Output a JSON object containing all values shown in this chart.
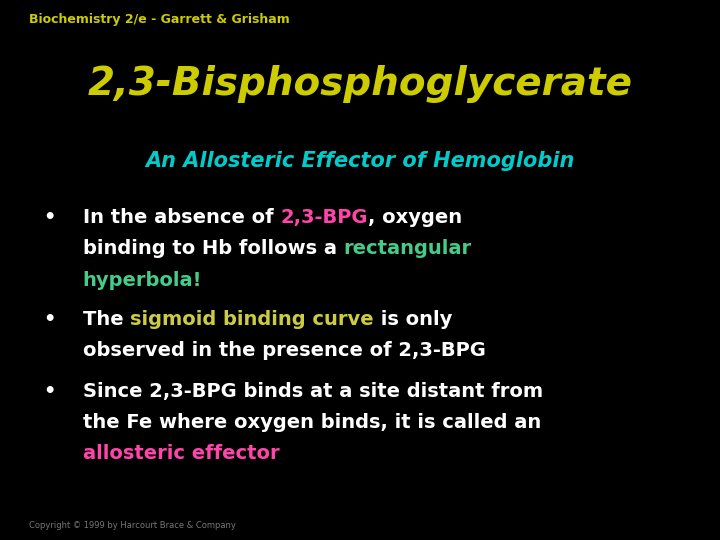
{
  "background_color": "#000000",
  "header_text": "Biochemistry 2/e - Garrett & Grisham",
  "header_color": "#cccc00",
  "header_fontsize": 9,
  "title_text": "2,3-Bisphosphoglycerate",
  "title_color": "#cccc00",
  "title_fontsize": 28,
  "subtitle_text": "An Allosteric Effector of Hemoglobin",
  "subtitle_color": "#00cccc",
  "subtitle_fontsize": 15,
  "footer_text": "Copyright © 1999 by Harcourt Brace & Company",
  "footer_color": "#777777",
  "footer_fontsize": 6,
  "bullet_fontsize": 14,
  "white": "#ffffff",
  "pink": "#ff44aa",
  "green": "#44cc88",
  "yellow_green": "#cccc44",
  "bullet1_line1": [
    {
      "text": "In the absence of ",
      "color": "#ffffff"
    },
    {
      "text": "2,3-BPG",
      "color": "#ff44aa"
    },
    {
      "text": ", oxygen",
      "color": "#ffffff"
    }
  ],
  "bullet1_line2": [
    {
      "text": "binding to Hb follows a ",
      "color": "#ffffff"
    },
    {
      "text": "rectangular",
      "color": "#44cc88"
    }
  ],
  "bullet1_line3": [
    {
      "text": "hyperbola!",
      "color": "#44cc88"
    }
  ],
  "bullet2_line1": [
    {
      "text": "The ",
      "color": "#ffffff"
    },
    {
      "text": "sigmoid binding curve",
      "color": "#cccc44"
    },
    {
      "text": " is only",
      "color": "#ffffff"
    }
  ],
  "bullet2_line2": [
    {
      "text": "observed in the presence of 2,3-BPG",
      "color": "#ffffff"
    }
  ],
  "bullet3_line1": [
    {
      "text": "Since 2,3-BPG binds at a site distant from",
      "color": "#ffffff"
    }
  ],
  "bullet3_line2": [
    {
      "text": "the Fe where oxygen binds, it is called an",
      "color": "#ffffff"
    }
  ],
  "bullet3_line3": [
    {
      "text": "allosteric effector",
      "color": "#ff44aa"
    }
  ]
}
